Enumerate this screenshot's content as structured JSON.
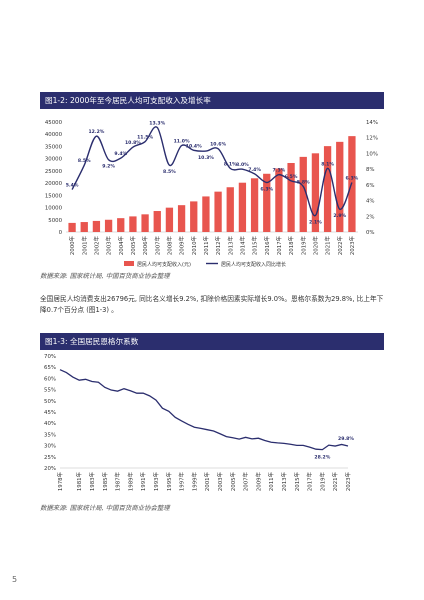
{
  "figure1": {
    "title": "图1-2: 2000年至今居民人均可支配收入及增长率",
    "source": "数据来源: 国家统计局, 中国百货商业协会整理",
    "chart_data": {
      "type": "bar",
      "categories": [
        "2000年",
        "2001年",
        "2002年",
        "2003年",
        "2004年",
        "2005年",
        "2006年",
        "2007年",
        "2008年",
        "2009年",
        "2010年",
        "2011年",
        "2012年",
        "2013年",
        "2014年",
        "2015年",
        "2016年",
        "2017年",
        "2018年",
        "2019年",
        "2020年",
        "2021年",
        "2022年",
        "2023年"
      ],
      "series": [
        {
          "name": "居民人均可支配收入(元)",
          "type": "bar",
          "axis": "left",
          "values": [
            3721,
            4070,
            4532,
            5007,
            5661,
            6385,
            7229,
            8584,
            9957,
            10977,
            12520,
            14551,
            16510,
            18311,
            20167,
            21966,
            23821,
            25974,
            28228,
            30733,
            32189,
            35128,
            36883,
            39218
          ]
        },
        {
          "name": "居民人均可支配收入同比增长",
          "type": "line",
          "axis": "right",
          "values": [
            5.4,
            8.5,
            12.2,
            9.2,
            9.4,
            10.8,
            11.5,
            13.3,
            8.5,
            11.0,
            10.4,
            10.3,
            10.6,
            8.1,
            8.0,
            7.4,
            6.3,
            7.3,
            6.5,
            5.8,
            2.1,
            8.1,
            2.9,
            6.3
          ]
        }
      ],
      "y_left_ticks": [
        "0",
        "5000",
        "10000",
        "15000",
        "20000",
        "25000",
        "30000",
        "35000",
        "40000",
        "45000"
      ],
      "y_right_ticks": [
        "0%",
        "2%",
        "4%",
        "6%",
        "8%",
        "10%",
        "12%",
        "14%"
      ],
      "ylim_left": [
        0,
        45000
      ],
      "ylim_right": [
        0,
        14
      ],
      "data_labels": [
        "5.4%",
        "8.5%",
        "12.2%",
        "9.2%",
        "9.4%",
        "10.8%",
        "11.5%",
        "13.3%",
        "8.5%",
        "11.0%",
        "10.4%",
        "10.3%",
        "10.6%",
        "8.1%",
        "8.0%",
        "7.4%",
        "6.3%",
        "7.3%",
        "6.5%",
        "5.8%",
        "2.1%",
        "8.1%",
        "2.9%",
        "6.3%"
      ],
      "legend_position": "bottom",
      "colors": {
        "bar": "#e8554e",
        "line": "#2b2e6e"
      }
    }
  },
  "paragraph": "全国居民人均消费支出26796元, 同比名义增长9.2%, 扣除价格因素实际增长9.0%。恩格尔系数为29.8%, 比上年下降0.7个百分点 (图1-3) 。",
  "figure2": {
    "title": "图1-3: 全国居民恩格尔系数",
    "source": "数据来源: 国家统计局, 中国百货商业协会整理",
    "chart_data": {
      "type": "line",
      "x_ticks": [
        "1978年",
        "1981年",
        "1983年",
        "1985年",
        "1987年",
        "1989年",
        "1991年",
        "1993年",
        "1995年",
        "1997年",
        "1999年",
        "2001年",
        "2003年",
        "2005年",
        "2007年",
        "2009年",
        "2011年",
        "2013年",
        "2015年",
        "2017年",
        "2019年",
        "2021年",
        "2023年"
      ],
      "x_start": 1978,
      "x_end": 2023,
      "y_ticks": [
        "20%",
        "25%",
        "30%",
        "35%",
        "40%",
        "45%",
        "50%",
        "55%",
        "60%",
        "65%",
        "70%"
      ],
      "ylim": [
        20,
        70
      ],
      "series": [
        {
          "values": [
            63.9,
            62.6,
            60.6,
            59.2,
            59.6,
            58.6,
            58.3,
            56.0,
            54.8,
            54.3,
            55.4,
            54.5,
            53.4,
            53.4,
            52.2,
            50.3,
            46.7,
            45.3,
            42.6,
            41.0,
            39.5,
            38.2,
            37.7,
            37.1,
            36.5,
            35.3,
            34.0,
            33.5,
            32.9,
            33.7,
            33.0,
            33.3,
            32.3,
            31.5,
            31.2,
            31.0,
            30.6,
            30.1,
            30.1,
            29.3,
            28.4,
            28.2,
            30.2,
            29.8,
            30.5,
            29.8
          ]
        }
      ],
      "annotations": [
        "28.2%",
        "29.8%"
      ],
      "colors": {
        "line": "#2b2e6e"
      }
    }
  },
  "page_number": "5"
}
